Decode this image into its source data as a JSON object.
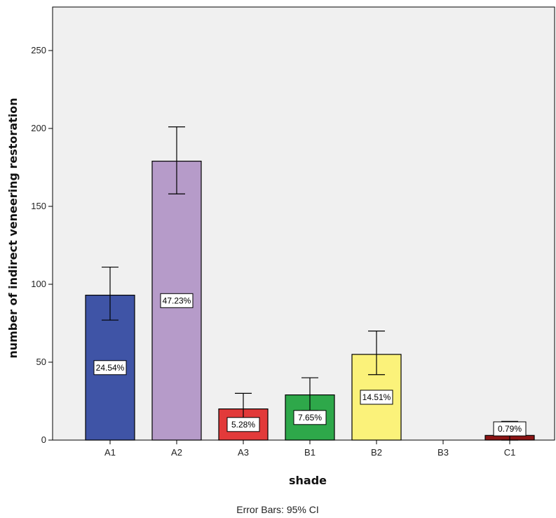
{
  "chart_data": {
    "type": "bar",
    "xlabel": "shade",
    "ylabel": "number of indirect veneering restoration",
    "footnote": "Error Bars: 95% CI",
    "categories": [
      "A1",
      "A2",
      "A3",
      "B1",
      "B2",
      "B3",
      "C1"
    ],
    "values": [
      93,
      179,
      20,
      29,
      55,
      0,
      3
    ],
    "error_low": [
      77,
      158,
      12,
      19,
      42,
      0,
      0
    ],
    "error_high": [
      111,
      201,
      30,
      40,
      70,
      0,
      12
    ],
    "data_labels": [
      "24.54%",
      "47.23%",
      "5.28%",
      "7.65%",
      "14.51%",
      "",
      "0.79%"
    ],
    "colors": [
      "#3f54a6",
      "#b69bc9",
      "#e23a3a",
      "#2ea84a",
      "#fbf27a",
      "#cccccc",
      "#8c1515"
    ],
    "ylim": [
      0,
      270
    ],
    "yticks": [
      0,
      50,
      100,
      150,
      200,
      250
    ],
    "grid": false,
    "plot_background": "#f0f0f0"
  }
}
